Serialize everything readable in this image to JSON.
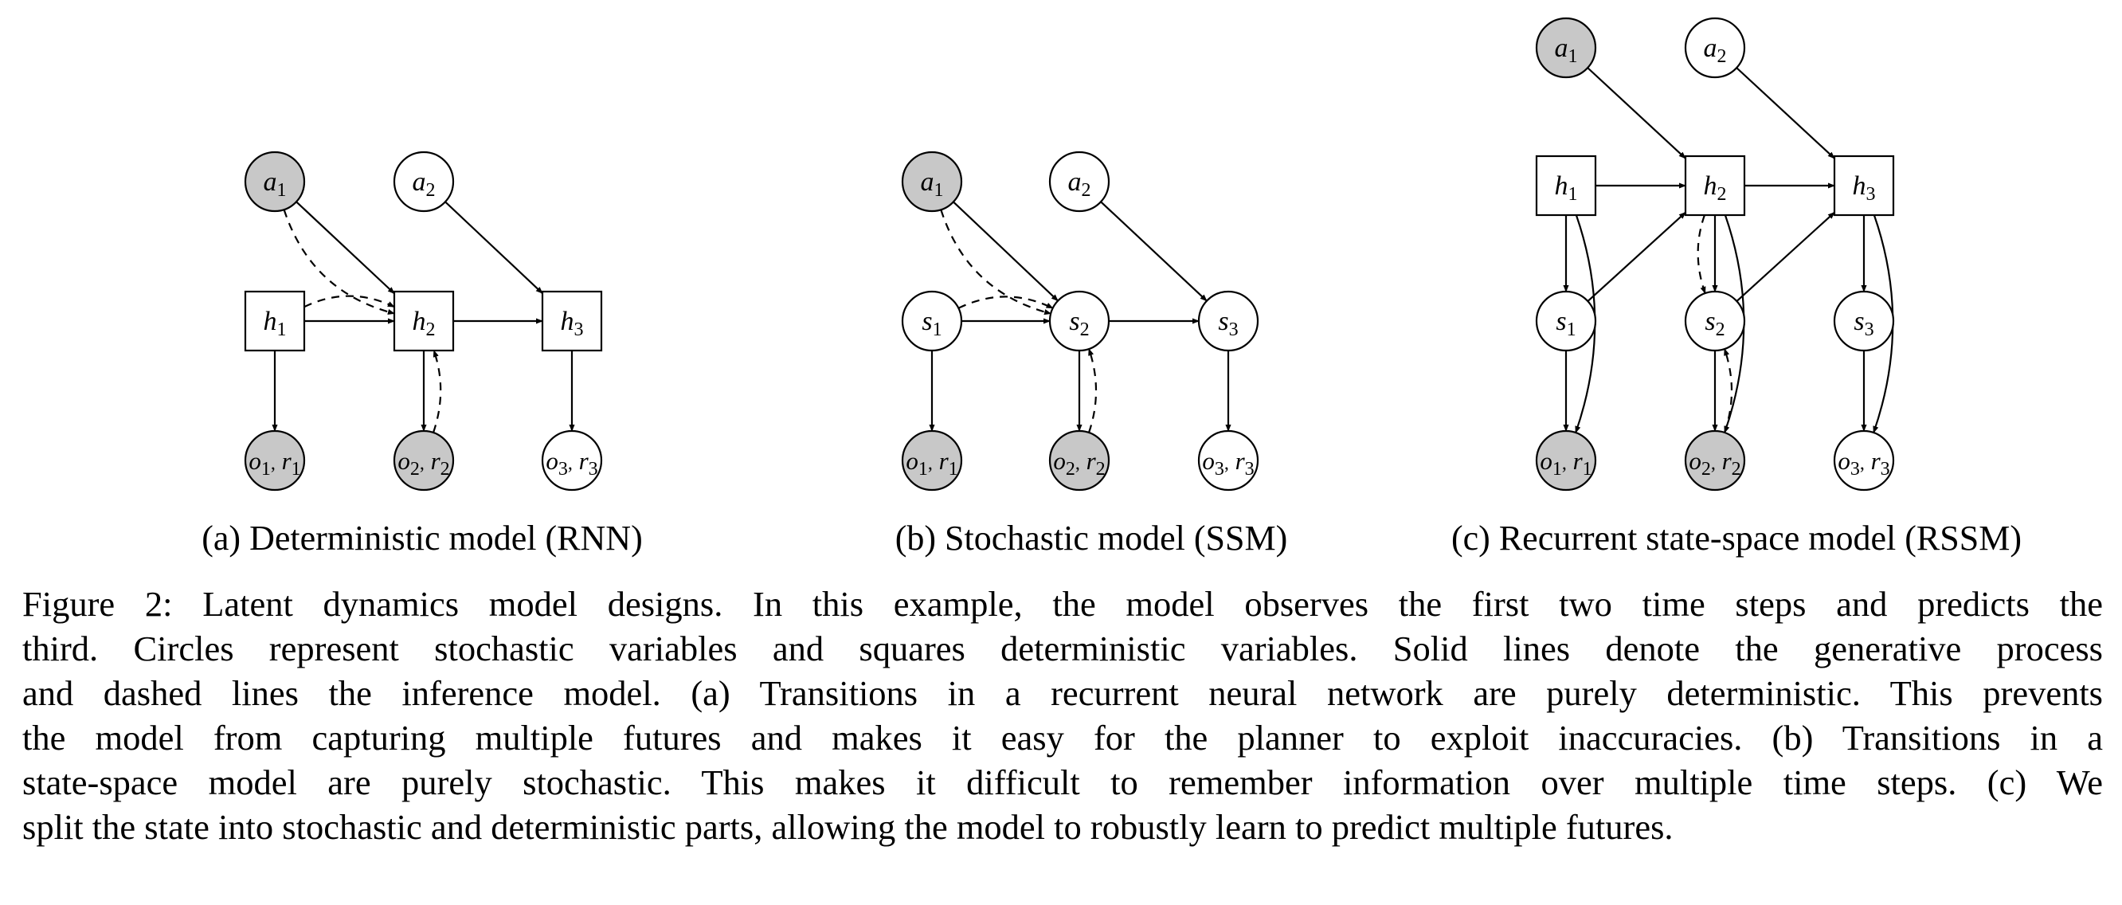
{
  "panels": [
    {
      "id": "a",
      "caption": "(a) Deterministic model (RNN)",
      "nodes": [
        {
          "id": "a1",
          "base": "a",
          "sub": "1",
          "shape": "circle",
          "observed": true
        },
        {
          "id": "a2",
          "base": "a",
          "sub": "2",
          "shape": "circle",
          "observed": false
        },
        {
          "id": "h1",
          "base": "h",
          "sub": "1",
          "shape": "square",
          "observed": false
        },
        {
          "id": "h2",
          "base": "h",
          "sub": "2",
          "shape": "square",
          "observed": false
        },
        {
          "id": "h3",
          "base": "h",
          "sub": "3",
          "shape": "square",
          "observed": false
        },
        {
          "id": "or1",
          "base": "o",
          "sub": "1",
          "base2": "r",
          "sub2": "1",
          "shape": "circle",
          "observed": true
        },
        {
          "id": "or2",
          "base": "o",
          "sub": "2",
          "base2": "r",
          "sub2": "2",
          "shape": "circle",
          "observed": true
        },
        {
          "id": "or3",
          "base": "o",
          "sub": "3",
          "base2": "r",
          "sub2": "3",
          "shape": "circle",
          "observed": false
        }
      ],
      "edges": [
        {
          "from": "a1",
          "to": "h2",
          "style": "solid"
        },
        {
          "from": "a2",
          "to": "h3",
          "style": "solid"
        },
        {
          "from": "h1",
          "to": "h2",
          "style": "solid"
        },
        {
          "from": "h2",
          "to": "h3",
          "style": "solid"
        },
        {
          "from": "h1",
          "to": "or1",
          "style": "solid"
        },
        {
          "from": "h2",
          "to": "or2",
          "style": "solid"
        },
        {
          "from": "h3",
          "to": "or3",
          "style": "solid"
        },
        {
          "from": "a1",
          "to": "h2",
          "style": "dashed"
        },
        {
          "from": "h1",
          "to": "h2",
          "style": "dashed"
        },
        {
          "from": "or2",
          "to": "h2",
          "style": "dashed"
        }
      ]
    },
    {
      "id": "b",
      "caption": "(b) Stochastic model (SSM)",
      "nodes": [
        {
          "id": "a1",
          "base": "a",
          "sub": "1",
          "shape": "circle",
          "observed": true
        },
        {
          "id": "a2",
          "base": "a",
          "sub": "2",
          "shape": "circle",
          "observed": false
        },
        {
          "id": "s1",
          "base": "s",
          "sub": "1",
          "shape": "circle",
          "observed": false
        },
        {
          "id": "s2",
          "base": "s",
          "sub": "2",
          "shape": "circle",
          "observed": false
        },
        {
          "id": "s3",
          "base": "s",
          "sub": "3",
          "shape": "circle",
          "observed": false
        },
        {
          "id": "or1",
          "base": "o",
          "sub": "1",
          "base2": "r",
          "sub2": "1",
          "shape": "circle",
          "observed": true
        },
        {
          "id": "or2",
          "base": "o",
          "sub": "2",
          "base2": "r",
          "sub2": "2",
          "shape": "circle",
          "observed": true
        },
        {
          "id": "or3",
          "base": "o",
          "sub": "3",
          "base2": "r",
          "sub2": "3",
          "shape": "circle",
          "observed": false
        }
      ],
      "edges": [
        {
          "from": "a1",
          "to": "s2",
          "style": "solid"
        },
        {
          "from": "a2",
          "to": "s3",
          "style": "solid"
        },
        {
          "from": "s1",
          "to": "s2",
          "style": "solid"
        },
        {
          "from": "s2",
          "to": "s3",
          "style": "solid"
        },
        {
          "from": "s1",
          "to": "or1",
          "style": "solid"
        },
        {
          "from": "s2",
          "to": "or2",
          "style": "solid"
        },
        {
          "from": "s3",
          "to": "or3",
          "style": "solid"
        },
        {
          "from": "a1",
          "to": "s2",
          "style": "dashed"
        },
        {
          "from": "s1",
          "to": "s2",
          "style": "dashed"
        },
        {
          "from": "or2",
          "to": "s2",
          "style": "dashed"
        }
      ]
    },
    {
      "id": "c",
      "caption": "(c) Recurrent state-space model (RSSM)",
      "nodes": [
        {
          "id": "a1",
          "base": "a",
          "sub": "1",
          "shape": "circle",
          "observed": true
        },
        {
          "id": "a2",
          "base": "a",
          "sub": "2",
          "shape": "circle",
          "observed": false
        },
        {
          "id": "h1",
          "base": "h",
          "sub": "1",
          "shape": "square",
          "observed": false
        },
        {
          "id": "h2",
          "base": "h",
          "sub": "2",
          "shape": "square",
          "observed": false
        },
        {
          "id": "h3",
          "base": "h",
          "sub": "3",
          "shape": "square",
          "observed": false
        },
        {
          "id": "s1",
          "base": "s",
          "sub": "1",
          "shape": "circle",
          "observed": false
        },
        {
          "id": "s2",
          "base": "s",
          "sub": "2",
          "shape": "circle",
          "observed": false
        },
        {
          "id": "s3",
          "base": "s",
          "sub": "3",
          "shape": "circle",
          "observed": false
        },
        {
          "id": "or1",
          "base": "o",
          "sub": "1",
          "base2": "r",
          "sub2": "1",
          "shape": "circle",
          "observed": true
        },
        {
          "id": "or2",
          "base": "o",
          "sub": "2",
          "base2": "r",
          "sub2": "2",
          "shape": "circle",
          "observed": true
        },
        {
          "id": "or3",
          "base": "o",
          "sub": "3",
          "base2": "r",
          "sub2": "3",
          "shape": "circle",
          "observed": false
        }
      ],
      "edges": [
        {
          "from": "a1",
          "to": "h2",
          "style": "solid"
        },
        {
          "from": "a2",
          "to": "h3",
          "style": "solid"
        },
        {
          "from": "h1",
          "to": "h2",
          "style": "solid"
        },
        {
          "from": "h2",
          "to": "h3",
          "style": "solid"
        },
        {
          "from": "h1",
          "to": "s1",
          "style": "solid"
        },
        {
          "from": "h2",
          "to": "s2",
          "style": "solid"
        },
        {
          "from": "h3",
          "to": "s3",
          "style": "solid"
        },
        {
          "from": "s1",
          "to": "h2",
          "style": "solid"
        },
        {
          "from": "s2",
          "to": "h3",
          "style": "solid"
        },
        {
          "from": "s1",
          "to": "or1",
          "style": "solid"
        },
        {
          "from": "s2",
          "to": "or2",
          "style": "solid"
        },
        {
          "from": "s3",
          "to": "or3",
          "style": "solid"
        },
        {
          "from": "h1",
          "to": "or1",
          "style": "solid"
        },
        {
          "from": "h2",
          "to": "or2",
          "style": "solid"
        },
        {
          "from": "h3",
          "to": "or3",
          "style": "solid"
        },
        {
          "from": "h2",
          "to": "s2",
          "style": "dashed"
        },
        {
          "from": "or2",
          "to": "s2",
          "style": "dashed"
        }
      ]
    }
  ],
  "caption_lines": [
    "Figure 2: Latent dynamics model designs. In this example, the model observes the first two time steps and predicts the",
    "third. Circles represent stochastic variables and squares deterministic variables. Solid lines denote the generative process",
    "and dashed lines the inference model. (a) Transitions in a recurrent neural network are purely deterministic. This prevents",
    "the model from capturing multiple futures and makes it easy for the planner to exploit inaccuracies. (b) Transitions in a",
    "state-space model are purely stochastic. This makes it difficult to remember information over multiple time steps. (c) We",
    "split the state into stochastic and deterministic parts, allowing the model to robustly learn to predict multiple futures."
  ],
  "colors": {
    "observed_fill": "#c8c8c8",
    "latent_fill": "#ffffff",
    "stroke": "#000000"
  }
}
